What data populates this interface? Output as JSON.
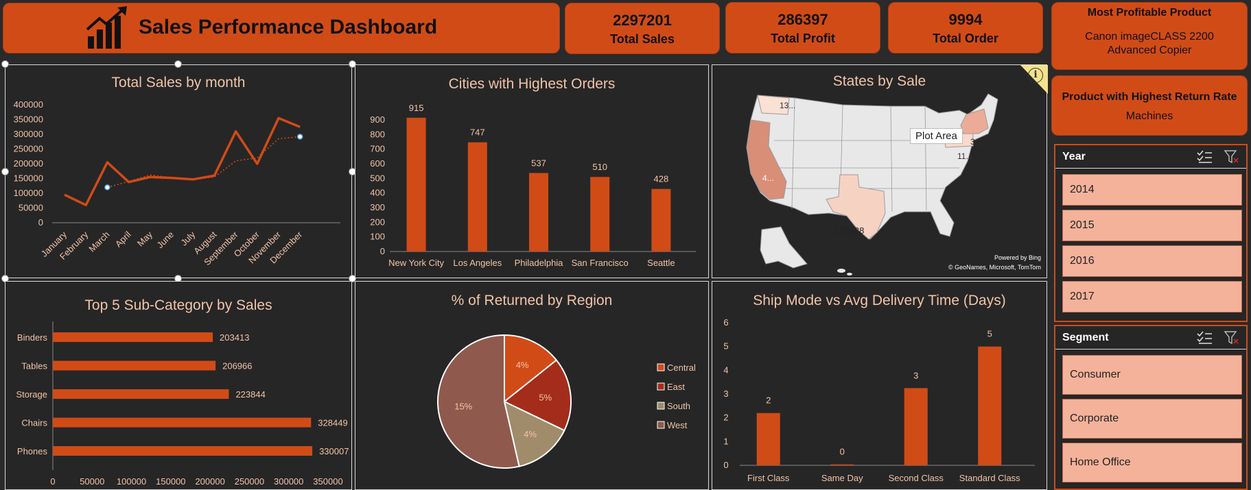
{
  "header": {
    "title": "Sales Performance Dashboard",
    "icon": "chart-growth-icon"
  },
  "kpis": [
    {
      "value": "2297201",
      "label": "Total Sales"
    },
    {
      "value": "286397",
      "label": "Total Profit"
    },
    {
      "value": "9994",
      "label": "Total Order"
    }
  ],
  "most_profitable": {
    "title": "Most Profitable Product",
    "value": "Canon imageCLASS 2200 Advanced Copier"
  },
  "highest_return": {
    "title": "Product with Highest Return Rate",
    "value": "Machines"
  },
  "slicers": {
    "year": {
      "title": "Year",
      "items": [
        "2014",
        "2015",
        "2016",
        "2017"
      ]
    },
    "segment": {
      "title": "Segment",
      "items": [
        "Consumer",
        "Corporate",
        "Home Office"
      ]
    }
  },
  "colors": {
    "accent": "#d14b17",
    "panel": "#262626",
    "title_text": "#f2c4a8",
    "slicer_item": "#f4b29b"
  },
  "map": {
    "title": "States by Sale",
    "tooltip": "Plot Area",
    "labels": [
      "13...",
      "4...",
      "170188",
      "3...",
      "11..."
    ],
    "powered_by": "Powered by Bing",
    "credits": "© GeoNames, Microsoft, TomTom",
    "info_icon": "info-icon"
  },
  "chart_data": [
    {
      "id": "monthly",
      "type": "line",
      "title": "Total Sales by month",
      "categories": [
        "January",
        "February",
        "March",
        "April",
        "May",
        "June",
        "July",
        "August",
        "September",
        "October",
        "November",
        "December"
      ],
      "series": [
        {
          "values": [
            95000,
            60000,
            205000,
            138000,
            155000,
            152000,
            147000,
            160000,
            310000,
            200000,
            355000,
            325000
          ]
        }
      ],
      "trendline": [
        null,
        null,
        120000,
        140000,
        162000,
        153000,
        148000,
        155000,
        210000,
        220000,
        285000,
        292000
      ],
      "yticks": [
        0,
        50000,
        100000,
        150000,
        200000,
        250000,
        300000,
        350000,
        400000
      ],
      "ylim": [
        0,
        400000
      ]
    },
    {
      "id": "cities",
      "type": "bar",
      "title": "Cities with Highest Orders",
      "categories": [
        "New York City",
        "Los Angeles",
        "Philadelphia",
        "San Francisco",
        "Seattle"
      ],
      "values": [
        915,
        747,
        537,
        510,
        428
      ],
      "yticks": [
        0,
        100,
        200,
        300,
        400,
        500,
        600,
        700,
        800,
        900
      ],
      "ylim": [
        0,
        900
      ]
    },
    {
      "id": "subcat",
      "type": "bar",
      "orientation": "horizontal",
      "title": "Top 5 Sub-Category by Sales",
      "categories": [
        "Binders",
        "Tables",
        "Storage",
        "Chairs",
        "Phones"
      ],
      "values": [
        203413,
        206966,
        223844,
        328449,
        330007
      ],
      "xticks": [
        0,
        50000,
        100000,
        150000,
        200000,
        250000,
        300000,
        350000
      ],
      "xlim": [
        0,
        350000
      ]
    },
    {
      "id": "returned",
      "type": "pie",
      "title": "% of Returned by Region",
      "series": [
        {
          "name": "Central",
          "value": 4,
          "label": "4%",
          "color": "#d14b17"
        },
        {
          "name": "East",
          "value": 5,
          "label": "5%",
          "color": "#a32d1a"
        },
        {
          "name": "South",
          "value": 4,
          "label": "4%",
          "color": "#a08c6a"
        },
        {
          "name": "West",
          "value": 15,
          "label": "15%",
          "color": "#8f5a4d"
        }
      ]
    },
    {
      "id": "shipmode",
      "type": "bar",
      "title": "Ship Mode vs Avg Delivery Time (Days)",
      "categories": [
        "First Class",
        "Same Day",
        "Second Class",
        "Standard Class"
      ],
      "values": [
        2.2,
        0.04,
        3.25,
        5
      ],
      "data_labels": [
        "2",
        "0",
        "3",
        "5"
      ],
      "yticks": [
        0,
        1,
        2,
        3,
        4,
        5,
        6
      ],
      "ylim": [
        0,
        6
      ]
    }
  ]
}
